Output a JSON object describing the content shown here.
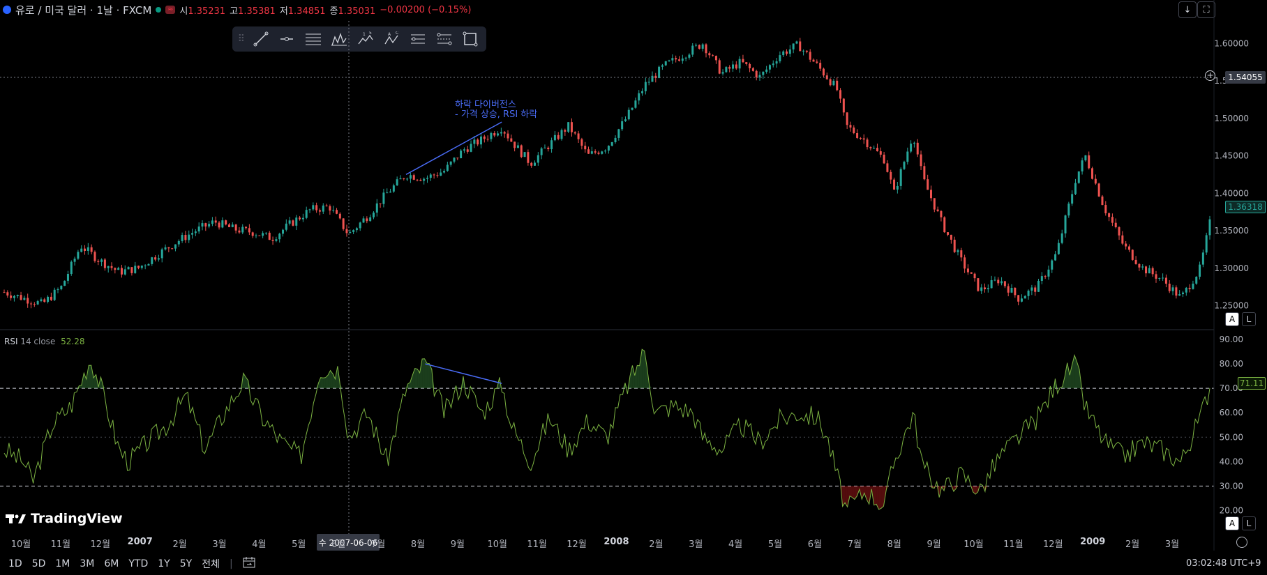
{
  "header": {
    "symbol": "유로 / 미국 달러 · 1날 · FXCM",
    "open_label": "시",
    "open": "1.35231",
    "high_label": "고",
    "high": "1.35381",
    "low_label": "저",
    "low": "1.34851",
    "close_label": "종",
    "close": "1.35031",
    "change": "−0.00200 (−0.15%)",
    "red_badge": "≈"
  },
  "toolbar": {
    "grip": "⠿",
    "tools": [
      "trend-line-icon",
      "horizontal-ray-icon",
      "fib-lines-icon",
      "pattern-icon",
      "wave-15-icon",
      "abc-wave-icon",
      "parallel-channel-icon",
      "regression-icon",
      "rectangle-icon"
    ]
  },
  "top_right": {
    "download": "↓",
    "fullscreen": "⛶"
  },
  "annotation": {
    "line1": "하락 다이버전스",
    "line2": "- 가격 상승, RSI 하락"
  },
  "rsi_header": {
    "name": "RSI",
    "params": "14 close",
    "value": "52.28"
  },
  "crosshair": {
    "price": "1.54055",
    "date": "수 2007-06-06"
  },
  "last_price_tag": "1.36318",
  "rsi_tag": "71.11",
  "scale_buttons": {
    "auto": "A",
    "log": "L"
  },
  "bottom_bar": {
    "ranges": [
      "1D",
      "5D",
      "1M",
      "3M",
      "6M",
      "YTD",
      "1Y",
      "5Y",
      "전체"
    ],
    "clock": "03:02:48 UTC+9"
  },
  "logo": "TradingView",
  "colors": {
    "up": "#26a69a",
    "down": "#ef5350",
    "rsi": "#7cb342",
    "annotation": "#4a6cf7"
  },
  "chart_data": [
    {
      "type": "candlestick",
      "title": "",
      "yticks": [
        1.25,
        1.3,
        1.35,
        1.4,
        1.45,
        1.5,
        1.55,
        1.6
      ],
      "ytick_labels": [
        "1.25000",
        "1.30000",
        "1.35000",
        "1.40000",
        "1.45000",
        "1.50000",
        "1.55000",
        "1.60000"
      ],
      "ylim": [
        1.23,
        1.63
      ],
      "x_months": [
        "10월",
        "11월",
        "12월",
        "2007",
        "2월",
        "3월",
        "4월",
        "5월",
        "6월",
        "7월",
        "8월",
        "9월",
        "10월",
        "11월",
        "12월",
        "2008",
        "2월",
        "3월",
        "4월",
        "5월",
        "6월",
        "7월",
        "8월",
        "9월",
        "10월",
        "11월",
        "12월",
        "2009",
        "2월",
        "3월"
      ],
      "price_path": [
        [
          0,
          1.268
        ],
        [
          2,
          1.26
        ],
        [
          4,
          1.252
        ],
        [
          6,
          1.275
        ],
        [
          8,
          1.33
        ],
        [
          10,
          1.31
        ],
        [
          12,
          1.295
        ],
        [
          14,
          1.3
        ],
        [
          16,
          1.318
        ],
        [
          18,
          1.335
        ],
        [
          20,
          1.35
        ],
        [
          22,
          1.362
        ],
        [
          24,
          1.352
        ],
        [
          26,
          1.348
        ],
        [
          28,
          1.34
        ],
        [
          30,
          1.36
        ],
        [
          32,
          1.378
        ],
        [
          34,
          1.382
        ],
        [
          36,
          1.345
        ],
        [
          38,
          1.37
        ],
        [
          40,
          1.4
        ],
        [
          42,
          1.425
        ],
        [
          44,
          1.42
        ],
        [
          46,
          1.43
        ],
        [
          48,
          1.458
        ],
        [
          50,
          1.472
        ],
        [
          52,
          1.488
        ],
        [
          53,
          1.47
        ],
        [
          55,
          1.44
        ],
        [
          57,
          1.465
        ],
        [
          59,
          1.49
        ],
        [
          61,
          1.45
        ],
        [
          63,
          1.462
        ],
        [
          65,
          1.5
        ],
        [
          67,
          1.545
        ],
        [
          69,
          1.57
        ],
        [
          71,
          1.585
        ],
        [
          73,
          1.6
        ],
        [
          75,
          1.56
        ],
        [
          77,
          1.575
        ],
        [
          79,
          1.555
        ],
        [
          81,
          1.585
        ],
        [
          83,
          1.598
        ],
        [
          85,
          1.57
        ],
        [
          87,
          1.54
        ],
        [
          88,
          1.49
        ],
        [
          90,
          1.47
        ],
        [
          92,
          1.445
        ],
        [
          93,
          1.4
        ],
        [
          95,
          1.48
        ],
        [
          96,
          1.42
        ],
        [
          98,
          1.36
        ],
        [
          100,
          1.31
        ],
        [
          102,
          1.27
        ],
        [
          104,
          1.285
        ],
        [
          106,
          1.26
        ],
        [
          108,
          1.275
        ],
        [
          110,
          1.32
        ],
        [
          112,
          1.42
        ],
        [
          113,
          1.45
        ],
        [
          115,
          1.38
        ],
        [
          117,
          1.33
        ],
        [
          119,
          1.3
        ],
        [
          121,
          1.285
        ],
        [
          123,
          1.26
        ],
        [
          125,
          1.3
        ],
        [
          126,
          1.36
        ]
      ],
      "divergence_line": {
        "from": [
          42,
          1.425
        ],
        "to": [
          52,
          1.495
        ]
      }
    },
    {
      "type": "line",
      "name": "RSI",
      "yticks": [
        20,
        30,
        40,
        50,
        60,
        70,
        80,
        90
      ],
      "ytick_labels": [
        "20.00",
        "30.00",
        "40.00",
        "50.00",
        "60.00",
        "70.00",
        "80.00",
        "90.00"
      ],
      "ylim": [
        15,
        92
      ],
      "bands": {
        "upper": 70,
        "middle": 50,
        "lower": 30
      },
      "values": [
        [
          0,
          45
        ],
        [
          2,
          40
        ],
        [
          3,
          32
        ],
        [
          5,
          55
        ],
        [
          7,
          63
        ],
        [
          9,
          82
        ],
        [
          10,
          72
        ],
        [
          12,
          45
        ],
        [
          13,
          40
        ],
        [
          15,
          48
        ],
        [
          17,
          55
        ],
        [
          19,
          67
        ],
        [
          21,
          45
        ],
        [
          23,
          60
        ],
        [
          25,
          73
        ],
        [
          27,
          58
        ],
        [
          29,
          48
        ],
        [
          31,
          42
        ],
        [
          33,
          78
        ],
        [
          35,
          78
        ],
        [
          36,
          50
        ],
        [
          38,
          60
        ],
        [
          40,
          40
        ],
        [
          42,
          70
        ],
        [
          44,
          81
        ],
        [
          46,
          60
        ],
        [
          48,
          73
        ],
        [
          50,
          60
        ],
        [
          52,
          72
        ],
        [
          53,
          55
        ],
        [
          55,
          40
        ],
        [
          57,
          58
        ],
        [
          59,
          45
        ],
        [
          61,
          57
        ],
        [
          63,
          50
        ],
        [
          65,
          70
        ],
        [
          67,
          86
        ],
        [
          68,
          60
        ],
        [
          70,
          63
        ],
        [
          72,
          60
        ],
        [
          73,
          50
        ],
        [
          75,
          45
        ],
        [
          77,
          55
        ],
        [
          79,
          48
        ],
        [
          81,
          57
        ],
        [
          83,
          60
        ],
        [
          85,
          58
        ],
        [
          86,
          50
        ],
        [
          88,
          20
        ],
        [
          90,
          28
        ],
        [
          92,
          22
        ],
        [
          93,
          40
        ],
        [
          95,
          60
        ],
        [
          96,
          38
        ],
        [
          98,
          28
        ],
        [
          100,
          35
        ],
        [
          102,
          28
        ],
        [
          104,
          42
        ],
        [
          106,
          50
        ],
        [
          108,
          58
        ],
        [
          110,
          72
        ],
        [
          112,
          80
        ],
        [
          113,
          62
        ],
        [
          115,
          48
        ],
        [
          117,
          42
        ],
        [
          119,
          48
        ],
        [
          121,
          45
        ],
        [
          123,
          40
        ],
        [
          125,
          58
        ],
        [
          126,
          71
        ]
      ],
      "divergence_line": {
        "from": [
          44,
          80
        ],
        "to": [
          52,
          72
        ]
      }
    }
  ]
}
